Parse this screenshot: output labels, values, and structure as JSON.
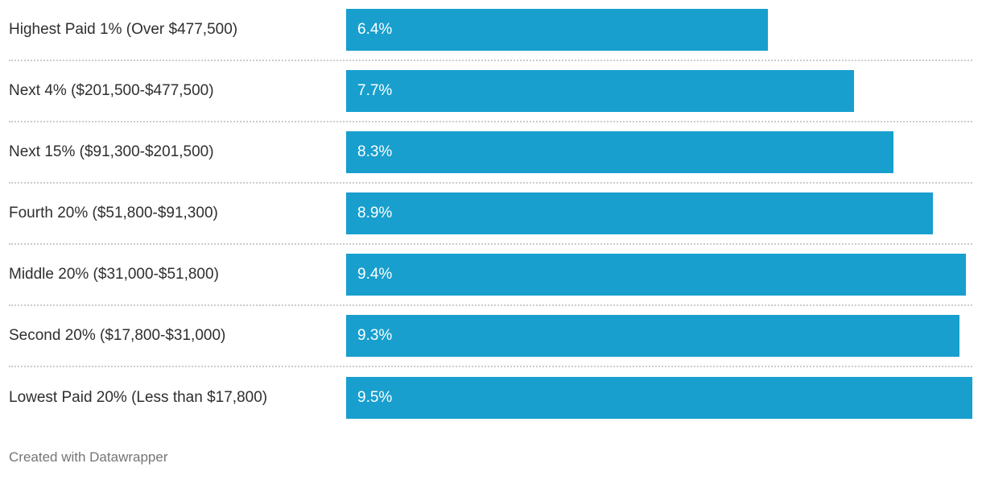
{
  "chart_data": {
    "type": "bar",
    "orientation": "horizontal",
    "title": "",
    "xlabel": "",
    "ylabel": "",
    "xlim": [
      0,
      9.5
    ],
    "grid": "dotted-row-separators",
    "legend": "none",
    "bar_color": "#189fce",
    "categories": [
      "Highest Paid 1% (Over $477,500)",
      "Next 4% ($201,500-$477,500)",
      "Next 15% ($91,300-$201,500)",
      "Fourth 20% ($51,800-$91,300)",
      "Middle 20% ($31,000-$51,800)",
      "Second 20% ($17,800-$31,000)",
      "Lowest Paid 20% (Less than $17,800)"
    ],
    "values": [
      6.4,
      7.7,
      8.3,
      8.9,
      9.4,
      9.3,
      9.5
    ],
    "value_labels": [
      "6.4%",
      "7.7%",
      "8.3%",
      "8.9%",
      "9.4%",
      "9.3%",
      "9.5%"
    ]
  },
  "footer": {
    "credit": "Created with Datawrapper"
  }
}
